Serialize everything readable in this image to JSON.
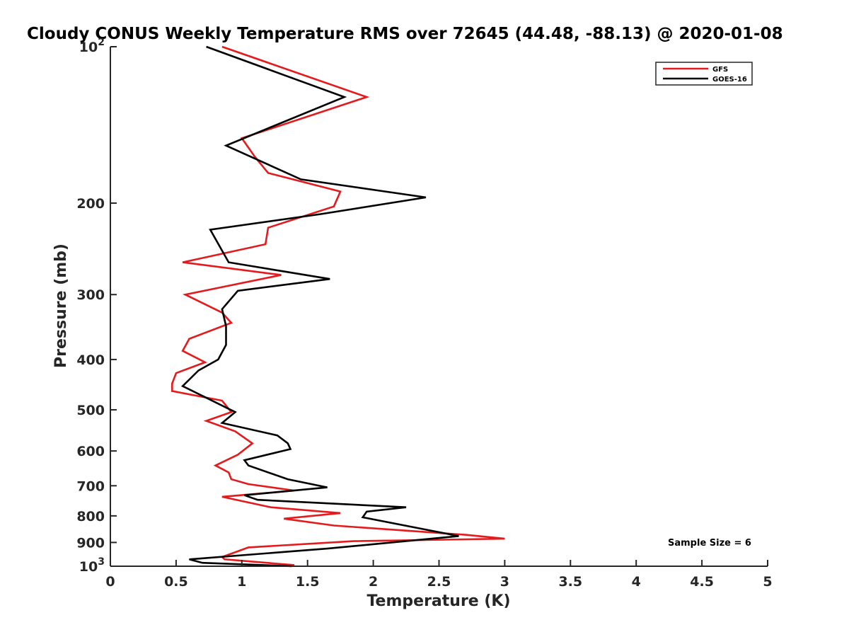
{
  "chart_data": {
    "type": "line",
    "title": "Cloudy CONUS Weekly Temperature RMS over 72645 (44.48, -88.13) @ 2020-01-08",
    "xlabel": "Temperature (K)",
    "ylabel": "Pressure (mb)",
    "xlim": [
      0,
      5
    ],
    "ylim": [
      100,
      1000
    ],
    "yscale": "log",
    "y_reversed": true,
    "grid": false,
    "legend_position": "top-right",
    "x_ticks": [
      0,
      0.5,
      1,
      1.5,
      2,
      2.5,
      3,
      3.5,
      4,
      4.5,
      5
    ],
    "x_tick_labels": [
      "0",
      "0.5",
      "1",
      "1.5",
      "2",
      "2.5",
      "3",
      "3.5",
      "4",
      "4.5",
      "5"
    ],
    "y_ticks": [
      100,
      200,
      300,
      400,
      500,
      600,
      700,
      800,
      900,
      1000
    ],
    "y_tick_labels": [
      "10^2",
      "200",
      "300",
      "400",
      "500",
      "600",
      "700",
      "800",
      "900",
      "10^3"
    ],
    "annotation": "Sample Size = 6",
    "series": [
      {
        "name": "GFS",
        "color": "#e41a1c",
        "points": [
          [
            0.85,
            100
          ],
          [
            1.95,
            125
          ],
          [
            1.0,
            150
          ],
          [
            1.1,
            163
          ],
          [
            1.2,
            175
          ],
          [
            1.75,
            190
          ],
          [
            1.7,
            203
          ],
          [
            1.2,
            223
          ],
          [
            1.18,
            240
          ],
          [
            0.55,
            260
          ],
          [
            1.3,
            275
          ],
          [
            0.57,
            300
          ],
          [
            0.85,
            325
          ],
          [
            0.92,
            340
          ],
          [
            0.6,
            365
          ],
          [
            0.55,
            385
          ],
          [
            0.72,
            405
          ],
          [
            0.5,
            425
          ],
          [
            0.47,
            445
          ],
          [
            0.47,
            460
          ],
          [
            0.85,
            480
          ],
          [
            0.92,
            505
          ],
          [
            0.73,
            525
          ],
          [
            0.95,
            550
          ],
          [
            1.08,
            580
          ],
          [
            0.97,
            610
          ],
          [
            0.8,
            640
          ],
          [
            0.9,
            660
          ],
          [
            0.92,
            680
          ],
          [
            1.05,
            695
          ],
          [
            1.4,
            715
          ],
          [
            0.85,
            735
          ],
          [
            1.22,
            770
          ],
          [
            1.75,
            790
          ],
          [
            1.32,
            810
          ],
          [
            1.7,
            835
          ],
          [
            2.7,
            870
          ],
          [
            3.0,
            885
          ],
          [
            1.85,
            895
          ],
          [
            1.05,
            920
          ],
          [
            0.85,
            960
          ],
          [
            0.87,
            970
          ],
          [
            1.4,
            995
          ]
        ]
      },
      {
        "name": "GOES-16",
        "color": "#000000",
        "points": [
          [
            0.73,
            100
          ],
          [
            1.78,
            125
          ],
          [
            0.88,
            155
          ],
          [
            1.45,
            180
          ],
          [
            2.4,
            195
          ],
          [
            1.6,
            210
          ],
          [
            0.76,
            225
          ],
          [
            0.9,
            260
          ],
          [
            1.67,
            280
          ],
          [
            0.97,
            295
          ],
          [
            0.85,
            320
          ],
          [
            0.88,
            345
          ],
          [
            0.88,
            375
          ],
          [
            0.82,
            400
          ],
          [
            0.67,
            420
          ],
          [
            0.55,
            450
          ],
          [
            0.88,
            495
          ],
          [
            0.95,
            505
          ],
          [
            0.85,
            530
          ],
          [
            1.27,
            560
          ],
          [
            1.35,
            580
          ],
          [
            1.37,
            595
          ],
          [
            1.02,
            625
          ],
          [
            1.05,
            640
          ],
          [
            1.35,
            680
          ],
          [
            1.65,
            705
          ],
          [
            1.02,
            730
          ],
          [
            1.12,
            745
          ],
          [
            2.25,
            770
          ],
          [
            1.95,
            785
          ],
          [
            1.92,
            805
          ],
          [
            2.65,
            875
          ],
          [
            1.65,
            925
          ],
          [
            0.6,
            970
          ],
          [
            0.7,
            985
          ],
          [
            1.38,
            1000
          ]
        ]
      }
    ]
  }
}
